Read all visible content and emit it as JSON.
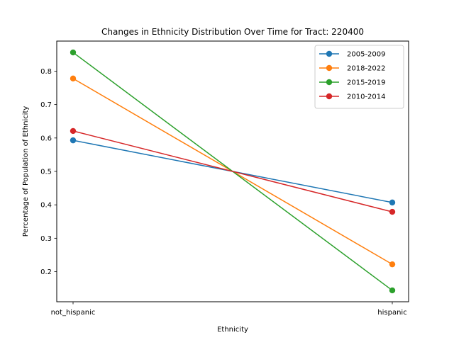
{
  "chart_data": {
    "type": "line",
    "title": "Changes in Ethnicity Distribution Over Time for Tract: 220400",
    "xlabel": "Ethnicity",
    "ylabel": "Percentage of Population of Ethnicity",
    "categories": [
      "not_hispanic",
      "hispanic"
    ],
    "ylim": [
      0.11,
      0.89
    ],
    "yticks": [
      0.2,
      0.3,
      0.4,
      0.5,
      0.6,
      0.7,
      0.8
    ],
    "grid": false,
    "legend_position": "top-right",
    "series": [
      {
        "name": "2005-2009",
        "color": "#1f77b4",
        "values": [
          0.593,
          0.407
        ]
      },
      {
        "name": "2018-2022",
        "color": "#ff7f0e",
        "values": [
          0.778,
          0.222
        ]
      },
      {
        "name": "2015-2019",
        "color": "#2ca02c",
        "values": [
          0.856,
          0.144
        ]
      },
      {
        "name": "2010-2014",
        "color": "#d62728",
        "values": [
          0.621,
          0.379
        ]
      }
    ]
  }
}
